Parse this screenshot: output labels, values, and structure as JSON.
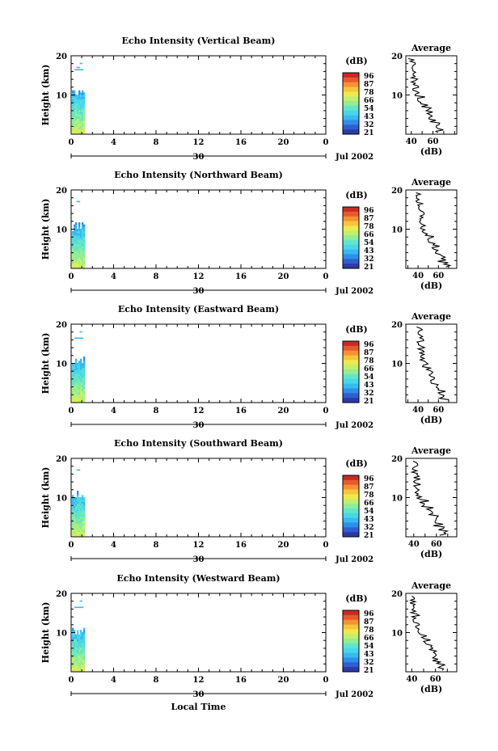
{
  "figure": {
    "xlabel": "Local Time",
    "date_label": "Jul 2002",
    "day_label": "30",
    "x_ticks": [
      "0",
      "4",
      "8",
      "12",
      "16",
      "20",
      "0"
    ],
    "y_ticks": [
      "20",
      "10"
    ],
    "y_label": "Height (km)",
    "colorbar_unit": "(dB)",
    "colorbar_labels": [
      "96",
      "87",
      "78",
      "66",
      "54",
      "43",
      "32",
      "21"
    ],
    "avg_title": "Average",
    "avg_xlabel": "(dB)"
  },
  "colors": {
    "colormap": [
      "#2d3aa6",
      "#2f5fd0",
      "#2f8fe8",
      "#39b9f2",
      "#48d7ea",
      "#63e6c7",
      "#8fee96",
      "#c2f06a",
      "#ecea4e",
      "#f7c43c",
      "#f59233",
      "#e85a2c",
      "#c92a25"
    ],
    "line": "#000000"
  },
  "chart_data": [
    {
      "type": "heatmap",
      "title": "Echo Intensity (Vertical Beam)",
      "x_range_hours": [
        0,
        24
      ],
      "y_range_km": [
        0,
        20
      ],
      "colorbar_range_db": [
        21,
        96
      ],
      "data_extent_hours": [
        0,
        1
      ],
      "avg_ticks": [
        "40",
        "60"
      ],
      "avg_xlim": [
        35,
        82
      ]
    },
    {
      "type": "heatmap",
      "title": "Echo Intensity (Northward Beam)",
      "x_range_hours": [
        0,
        24
      ],
      "y_range_km": [
        0,
        20
      ],
      "colorbar_range_db": [
        21,
        96
      ],
      "data_extent_hours": [
        0,
        1
      ],
      "avg_ticks": [
        "40",
        "60"
      ],
      "avg_xlim": [
        28,
        78
      ]
    },
    {
      "type": "heatmap",
      "title": "Echo Intensity (Eastward Beam)",
      "x_range_hours": [
        0,
        24
      ],
      "y_range_km": [
        0,
        20
      ],
      "colorbar_range_db": [
        21,
        96
      ],
      "data_extent_hours": [
        0,
        1
      ],
      "avg_ticks": [
        "40",
        "60"
      ],
      "avg_xlim": [
        28,
        78
      ]
    },
    {
      "type": "heatmap",
      "title": "Echo Intensity (Southward Beam)",
      "x_range_hours": [
        0,
        24
      ],
      "y_range_km": [
        0,
        20
      ],
      "colorbar_range_db": [
        21,
        96
      ],
      "data_extent_hours": [
        0,
        1
      ],
      "avg_ticks": [
        "40",
        "60"
      ],
      "avg_xlim": [
        33,
        78
      ]
    },
    {
      "type": "heatmap",
      "title": "Echo Intensity (Westward Beam)",
      "x_range_hours": [
        0,
        24
      ],
      "y_range_km": [
        0,
        20
      ],
      "colorbar_range_db": [
        21,
        96
      ],
      "data_extent_hours": [
        0,
        1
      ],
      "avg_ticks": [
        "40",
        "60"
      ],
      "avg_xlim": [
        35,
        78
      ]
    }
  ]
}
